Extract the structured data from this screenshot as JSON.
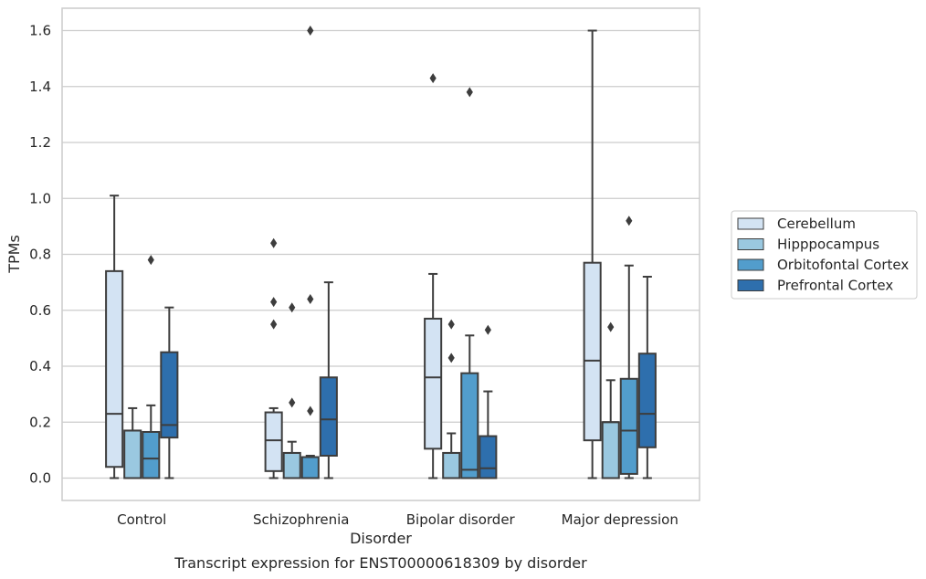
{
  "chart_data": {
    "type": "box",
    "caption": "Transcript expression for ENST00000618309 by disorder",
    "xlabel": "Disorder",
    "ylabel": "TPMs",
    "ylim": [
      -0.08,
      1.68
    ],
    "yticks": [
      0.0,
      0.2,
      0.4,
      0.6,
      0.8,
      1.0,
      1.2,
      1.4,
      1.6
    ],
    "ytick_labels": [
      "0.0",
      "0.2",
      "0.4",
      "0.6",
      "0.8",
      "1.0",
      "1.2",
      "1.4",
      "1.6"
    ],
    "grid": true,
    "legend_position": "right",
    "categories": [
      "Control",
      "Schizophrenia",
      "Bipolar disorder",
      "Major depression"
    ],
    "series": [
      {
        "name": "Cerebellum",
        "color": "#d3e3f3",
        "boxes": [
          {
            "whisker_low": 0.0,
            "q1": 0.04,
            "median": 0.23,
            "q3": 0.74,
            "whisker_high": 1.01,
            "outliers": []
          },
          {
            "whisker_low": 0.0,
            "q1": 0.025,
            "median": 0.135,
            "q3": 0.235,
            "whisker_high": 0.25,
            "outliers": [
              0.84,
              0.63,
              0.55
            ]
          },
          {
            "whisker_low": 0.0,
            "q1": 0.105,
            "median": 0.36,
            "q3": 0.57,
            "whisker_high": 0.73,
            "outliers": [
              1.43
            ]
          },
          {
            "whisker_low": 0.0,
            "q1": 0.135,
            "median": 0.42,
            "q3": 0.77,
            "whisker_high": 1.6,
            "outliers": []
          }
        ]
      },
      {
        "name": "Hipppocampus",
        "color": "#9ac8e0",
        "boxes": [
          {
            "whisker_low": 0.0,
            "q1": 0.0,
            "median": 0.17,
            "q3": 0.17,
            "whisker_high": 0.25,
            "outliers": []
          },
          {
            "whisker_low": 0.0,
            "q1": 0.0,
            "median": 0.09,
            "q3": 0.09,
            "whisker_high": 0.13,
            "outliers": [
              0.61,
              0.27
            ]
          },
          {
            "whisker_low": 0.0,
            "q1": 0.0,
            "median": 0.09,
            "q3": 0.09,
            "whisker_high": 0.16,
            "outliers": [
              0.55,
              0.43
            ]
          },
          {
            "whisker_low": 0.0,
            "q1": 0.0,
            "median": 0.2,
            "q3": 0.2,
            "whisker_high": 0.35,
            "outliers": [
              0.54
            ]
          }
        ]
      },
      {
        "name": "Orbitofontal Cortex",
        "color": "#529dcc",
        "boxes": [
          {
            "whisker_low": 0.0,
            "q1": 0.0,
            "median": 0.07,
            "q3": 0.165,
            "whisker_high": 0.26,
            "outliers": [
              0.78
            ]
          },
          {
            "whisker_low": 0.0,
            "q1": 0.0,
            "median": 0.075,
            "q3": 0.075,
            "whisker_high": 0.08,
            "outliers": [
              1.6,
              0.64,
              0.24
            ]
          },
          {
            "whisker_low": 0.0,
            "q1": 0.0,
            "median": 0.03,
            "q3": 0.375,
            "whisker_high": 0.51,
            "outliers": [
              1.38
            ]
          },
          {
            "whisker_low": 0.0,
            "q1": 0.015,
            "median": 0.17,
            "q3": 0.355,
            "whisker_high": 0.76,
            "outliers": [
              0.92
            ]
          }
        ]
      },
      {
        "name": "Prefrontal Cortex",
        "color": "#2e6fad",
        "boxes": [
          {
            "whisker_low": 0.0,
            "q1": 0.145,
            "median": 0.19,
            "q3": 0.45,
            "whisker_high": 0.61,
            "outliers": []
          },
          {
            "whisker_low": 0.0,
            "q1": 0.08,
            "median": 0.21,
            "q3": 0.36,
            "whisker_high": 0.7,
            "outliers": []
          },
          {
            "whisker_low": 0.0,
            "q1": 0.0,
            "median": 0.035,
            "q3": 0.15,
            "whisker_high": 0.31,
            "outliers": [
              0.53
            ]
          },
          {
            "whisker_low": 0.0,
            "q1": 0.11,
            "median": 0.23,
            "q3": 0.445,
            "whisker_high": 0.72,
            "outliers": []
          }
        ]
      }
    ]
  }
}
